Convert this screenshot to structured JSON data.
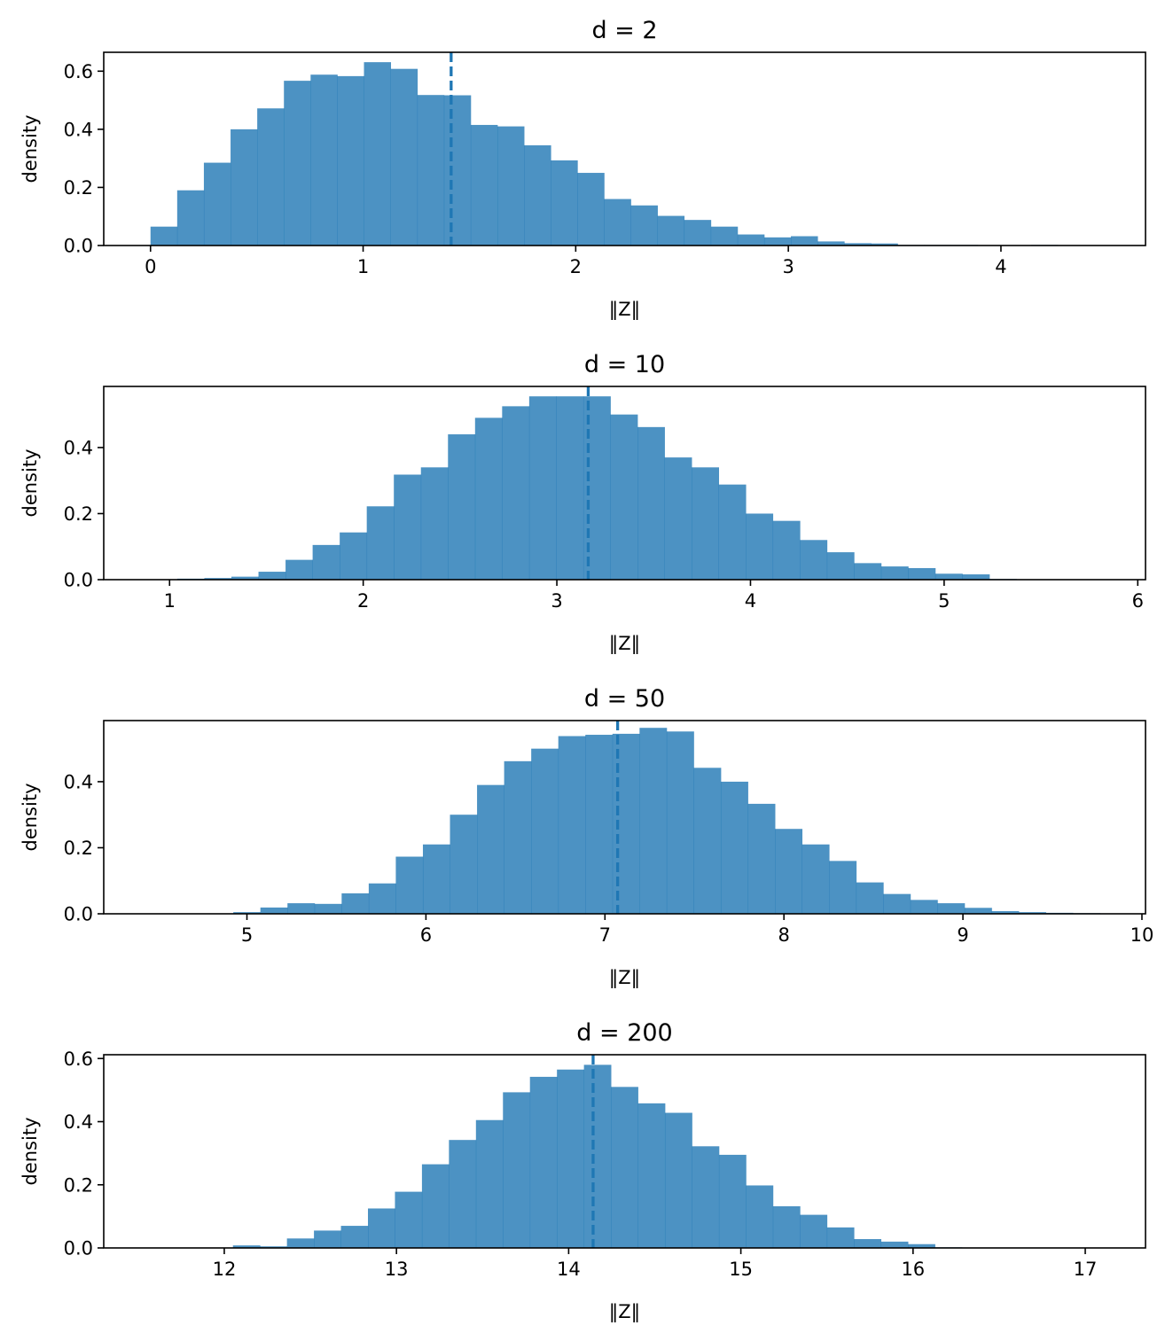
{
  "chart_data": [
    {
      "type": "bar",
      "title": "d = 2",
      "xlabel": "‖Z‖",
      "ylabel": "density",
      "xlim": [
        -0.22,
        4.68
      ],
      "ylim": [
        0,
        0.665
      ],
      "xticks": [
        "0",
        "1",
        "2",
        "3",
        "4"
      ],
      "xtick_values": [
        0,
        1,
        2,
        3,
        4
      ],
      "yticks": [
        "0.0",
        "0.2",
        "0.4",
        "0.6"
      ],
      "ytick_values": [
        0.0,
        0.2,
        0.4,
        0.6
      ],
      "bin_start": 0.0,
      "bin_width": 0.1255,
      "values": [
        0.065,
        0.19,
        0.285,
        0.4,
        0.472,
        0.567,
        0.588,
        0.583,
        0.631,
        0.608,
        0.518,
        0.517,
        0.415,
        0.41,
        0.345,
        0.293,
        0.25,
        0.16,
        0.138,
        0.102,
        0.088,
        0.065,
        0.038,
        0.028,
        0.032,
        0.014,
        0.008,
        0.007,
        0.002,
        0.002,
        0.002,
        0.001,
        0.0,
        0.002,
        0.001,
        0.001
      ],
      "reference_line": 1.414,
      "grid": false
    },
    {
      "type": "bar",
      "title": "d = 10",
      "xlabel": "‖Z‖",
      "ylabel": "density",
      "xlim": [
        0.66,
        6.04
      ],
      "ylim": [
        0,
        0.585
      ],
      "xticks": [
        "1",
        "2",
        "3",
        "4",
        "5",
        "6"
      ],
      "xtick_values": [
        1,
        2,
        3,
        4,
        5,
        6
      ],
      "yticks": [
        "0.0",
        "0.2",
        "0.4"
      ],
      "ytick_values": [
        0.0,
        0.2,
        0.4
      ],
      "bin_start": 0.9,
      "bin_width": 0.1398,
      "values": [
        0.001,
        0.003,
        0.005,
        0.009,
        0.024,
        0.06,
        0.105,
        0.143,
        0.222,
        0.318,
        0.34,
        0.44,
        0.49,
        0.525,
        0.555,
        0.555,
        0.555,
        0.5,
        0.462,
        0.37,
        0.34,
        0.288,
        0.2,
        0.178,
        0.12,
        0.083,
        0.05,
        0.04,
        0.035,
        0.018,
        0.016,
        0.002,
        0.001,
        0.0,
        0.0
      ],
      "reference_line": 3.162,
      "grid": false
    },
    {
      "type": "bar",
      "title": "d = 50",
      "xlabel": "‖Z‖",
      "ylabel": "density",
      "xlim": [
        4.2,
        10.02
      ],
      "ylim": [
        0,
        0.585
      ],
      "xticks": [
        "5",
        "6",
        "7",
        "8",
        "9",
        "10"
      ],
      "xtick_values": [
        5,
        6,
        7,
        8,
        9,
        10
      ],
      "yticks": [
        "0.0",
        "0.2",
        "0.4"
      ],
      "ytick_values": [
        0.0,
        0.2,
        0.4
      ],
      "bin_start": 4.47,
      "bin_width": 0.1513,
      "values": [
        0.0,
        0.0,
        0.0,
        0.005,
        0.019,
        0.032,
        0.03,
        0.062,
        0.092,
        0.173,
        0.21,
        0.3,
        0.39,
        0.462,
        0.5,
        0.538,
        0.542,
        0.545,
        0.563,
        0.552,
        0.442,
        0.4,
        0.333,
        0.257,
        0.21,
        0.16,
        0.095,
        0.06,
        0.042,
        0.032,
        0.018,
        0.008,
        0.005,
        0.003,
        0.002
      ],
      "reference_line": 7.071,
      "grid": false
    },
    {
      "type": "bar",
      "title": "d = 200",
      "xlabel": "‖Z‖",
      "ylabel": "density",
      "xlim": [
        11.3,
        17.35
      ],
      "ylim": [
        0,
        0.612
      ],
      "xticks": [
        "12",
        "13",
        "14",
        "15",
        "16",
        "17"
      ],
      "xtick_values": [
        12,
        13,
        14,
        15,
        16,
        17
      ],
      "yticks": [
        "0.0",
        "0.2",
        "0.4",
        "0.6"
      ],
      "ytick_values": [
        0.0,
        0.2,
        0.4,
        0.6
      ],
      "bin_start": 11.58,
      "bin_width": 0.1568,
      "values": [
        0.0,
        0.0,
        0.0,
        0.008,
        0.005,
        0.03,
        0.055,
        0.07,
        0.125,
        0.178,
        0.265,
        0.342,
        0.405,
        0.493,
        0.542,
        0.565,
        0.58,
        0.51,
        0.458,
        0.428,
        0.322,
        0.295,
        0.198,
        0.132,
        0.105,
        0.065,
        0.028,
        0.02,
        0.012,
        0.002,
        0.001,
        0.0,
        0.0,
        0.0,
        0.0
      ],
      "reference_line": 14.142,
      "grid": false
    }
  ]
}
